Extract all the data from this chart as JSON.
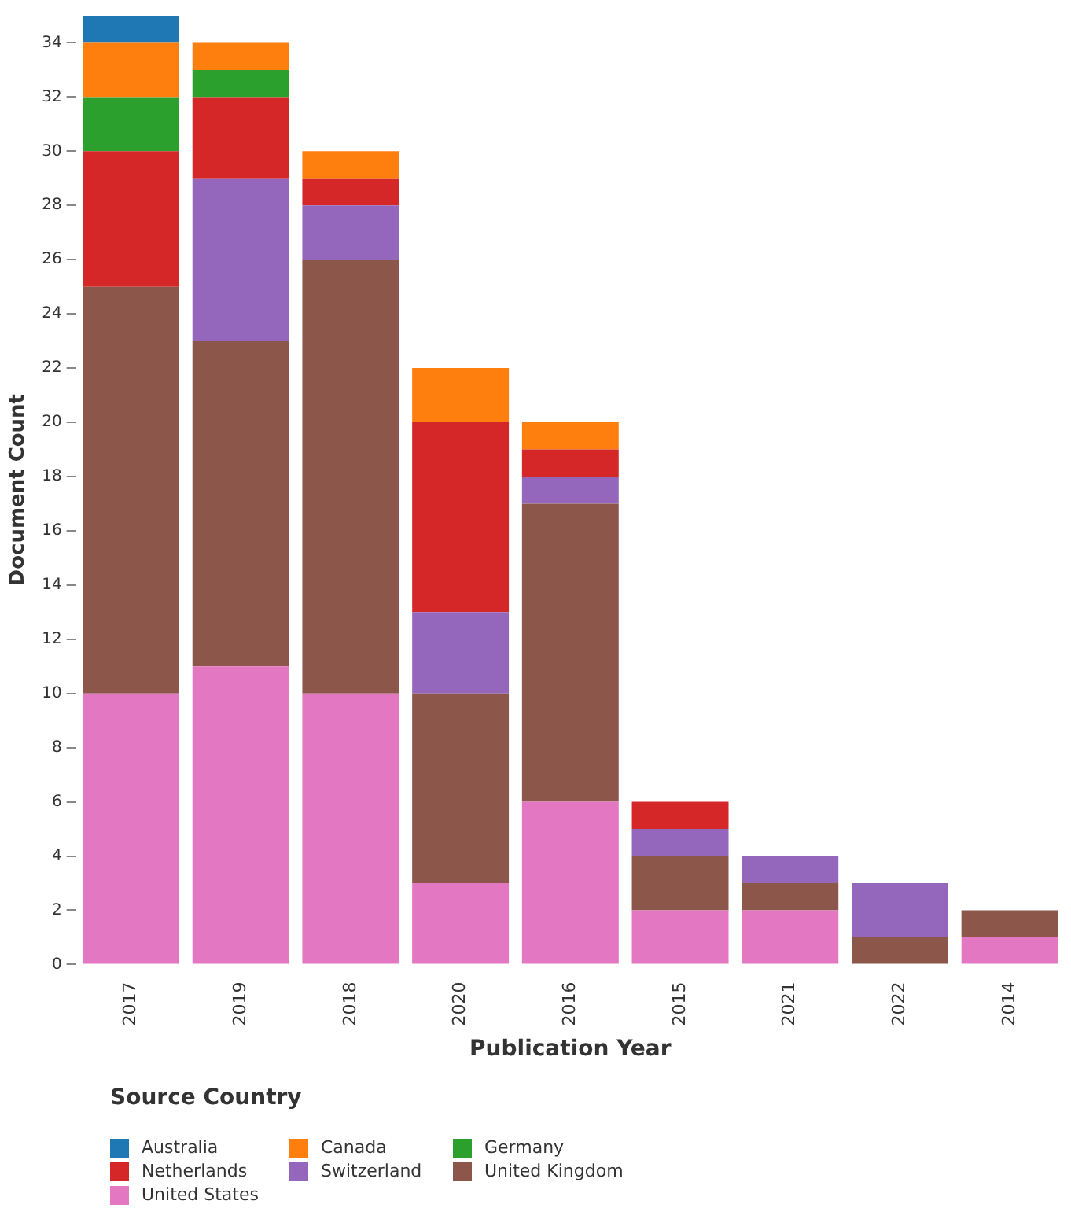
{
  "chart_data": {
    "type": "bar",
    "stacked": true,
    "xlabel": "Publication Year",
    "ylabel": "Document Count",
    "legend_title": "Source Country",
    "legend": "bottom",
    "grid": false,
    "categories": [
      "2017",
      "2019",
      "2018",
      "2020",
      "2016",
      "2015",
      "2021",
      "2022",
      "2014"
    ],
    "ylim": [
      0,
      35
    ],
    "yticks": [
      0,
      2,
      4,
      6,
      8,
      10,
      12,
      14,
      16,
      18,
      20,
      22,
      24,
      26,
      28,
      30,
      32,
      34
    ],
    "series": [
      {
        "name": "United States",
        "color": "#e377c2",
        "values": [
          10,
          11,
          10,
          3,
          6,
          2,
          2,
          0,
          1
        ]
      },
      {
        "name": "United Kingdom",
        "color": "#8c564b",
        "values": [
          15,
          12,
          16,
          7,
          11,
          2,
          1,
          1,
          1
        ]
      },
      {
        "name": "Switzerland",
        "color": "#9467bd",
        "values": [
          0,
          6,
          2,
          3,
          1,
          1,
          1,
          2,
          0
        ]
      },
      {
        "name": "Netherlands",
        "color": "#d62728",
        "values": [
          5,
          3,
          1,
          7,
          1,
          1,
          0,
          0,
          0
        ]
      },
      {
        "name": "Germany",
        "color": "#2ca02c",
        "values": [
          2,
          1,
          0,
          0,
          0,
          0,
          0,
          0,
          0
        ]
      },
      {
        "name": "Canada",
        "color": "#ff7f0e",
        "values": [
          2,
          1,
          1,
          2,
          1,
          0,
          0,
          0,
          0
        ]
      },
      {
        "name": "Australia",
        "color": "#1f77b4",
        "values": [
          1,
          0,
          0,
          0,
          0,
          0,
          0,
          0,
          0
        ]
      }
    ]
  }
}
